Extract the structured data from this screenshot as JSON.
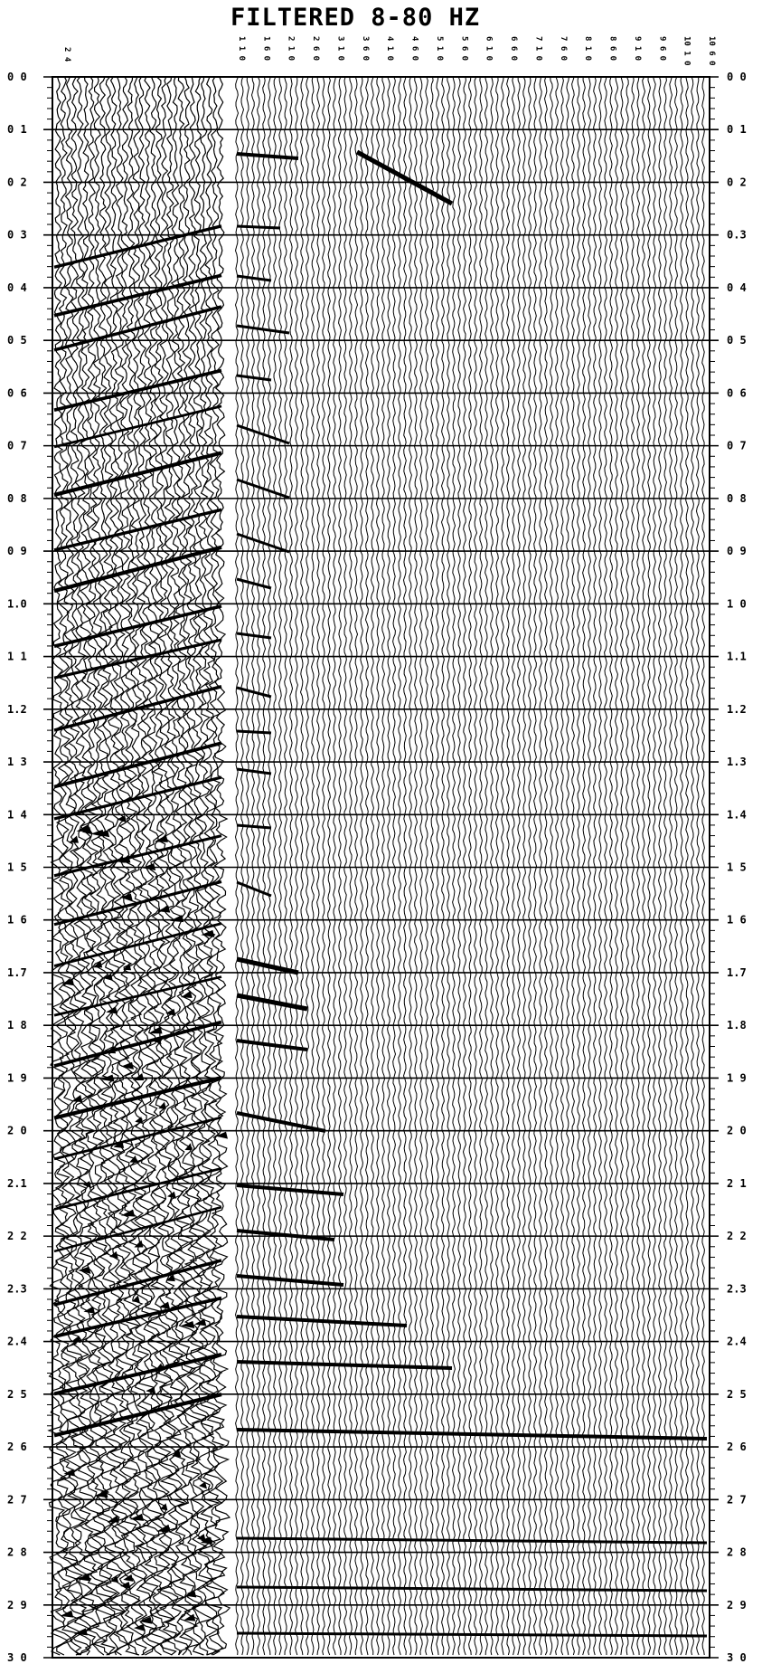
{
  "title": "FILTERED 8-80 HZ",
  "time_axis": {
    "left_labels": [
      "0 0",
      "0 1",
      "0 2",
      "0 3",
      "0 4",
      "0 5",
      "0 6",
      "0 7",
      "0 8",
      "0 9",
      "1.0",
      "1 1",
      "1.2",
      "1 3",
      "1 4",
      "1 5",
      "1 6",
      "1.7",
      "1 8",
      "1 9",
      "2 0",
      "2.1",
      "2 2",
      "2.3",
      "2.4",
      "2 5",
      "2 6",
      "2 7",
      "2 8",
      "2 9",
      "3 0"
    ],
    "right_labels": [
      "0 0",
      "0 1",
      "0 2",
      "0.3",
      "0 4",
      "0 5",
      "0 6",
      "0 7",
      "0 8",
      "0 9",
      "1 0",
      "1.1",
      "1.2",
      "1.3",
      "1.4",
      "1 5",
      "1 6",
      "1.7",
      "1.8",
      "1 9",
      "2 0",
      "2 1",
      "2 2",
      "2.3",
      "2.4",
      "2 5",
      "2 6",
      "2 7",
      "2 8",
      "2 9",
      "3 0"
    ]
  },
  "trace_headers": [
    "1 1 0",
    "1 6 0",
    "2 1 0",
    "2 6 0",
    "3 1 0",
    "3 6 0",
    "4 1 0",
    "4 6 0",
    "5 1 0",
    "5 6 0",
    "6 1 0",
    "6 6 0",
    "7 1 0",
    "7 6 0",
    "8 1 0",
    "8 6 0",
    "9 1 0",
    "9 6 0",
    "10 1 0",
    "10 6 0"
  ],
  "left_header": "2 4",
  "colors": {
    "ink": "#000000",
    "paper": "#ffffff"
  }
}
